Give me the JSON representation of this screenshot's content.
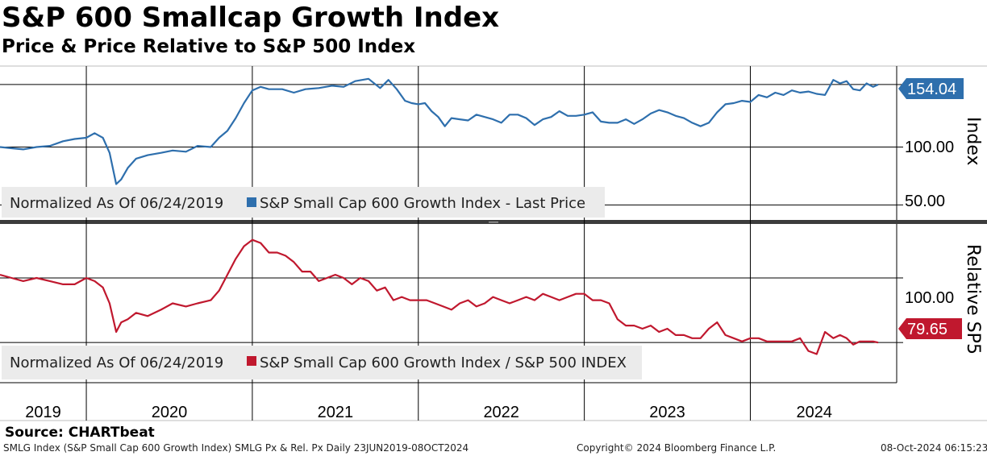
{
  "title": "S&P 600 Smallcap Growth Index",
  "subtitle": "Price & Price Relative to S&P 500 Index",
  "source": "Source: CHARTbeat",
  "footer": {
    "left": "SMLG Index (S&P Small Cap 600 Growth Index) SMLG Px & Rel. Px  Daily 23JUN2019-08OCT2024",
    "center": "Copyright© 2024 Bloomberg Finance L.P.",
    "right": "08-Oct-2024 06:15:23"
  },
  "colors": {
    "price": "#2e6fad",
    "relative": "#c0182e",
    "legend_bg": "#ebebeb",
    "divider": "#3c3c3c"
  },
  "chart_data": [
    {
      "type": "line",
      "ylabel": "Index",
      "yticks": [
        "100.00",
        "50.00"
      ],
      "last_value_label": "154.04",
      "legend": {
        "prefix": "Normalized As Of 06/24/2019",
        "series_name": "S&P Small Cap 600 Growth Index - Last Price"
      },
      "ylim": [
        37,
        170
      ],
      "series": [
        {
          "name": "S&P Small Cap 600 Growth Index - Last Price",
          "x": [
            2019.48,
            2019.55,
            2019.62,
            2019.7,
            2019.78,
            2019.86,
            2019.93,
            2020.0,
            2020.05,
            2020.1,
            2020.14,
            2020.18,
            2020.21,
            2020.25,
            2020.3,
            2020.37,
            2020.45,
            2020.52,
            2020.6,
            2020.67,
            2020.75,
            2020.8,
            2020.85,
            2020.9,
            2020.95,
            2021.0,
            2021.05,
            2021.1,
            2021.18,
            2021.25,
            2021.32,
            2021.4,
            2021.48,
            2021.55,
            2021.62,
            2021.7,
            2021.77,
            2021.82,
            2021.87,
            2021.92,
            2021.96,
            2022.0,
            2022.04,
            2022.08,
            2022.12,
            2022.16,
            2022.2,
            2022.25,
            2022.3,
            2022.35,
            2022.4,
            2022.45,
            2022.5,
            2022.55,
            2022.6,
            2022.65,
            2022.7,
            2022.75,
            2022.8,
            2022.85,
            2022.9,
            2022.95,
            2023.0,
            2023.05,
            2023.1,
            2023.15,
            2023.2,
            2023.25,
            2023.3,
            2023.35,
            2023.4,
            2023.45,
            2023.5,
            2023.55,
            2023.6,
            2023.65,
            2023.7,
            2023.75,
            2023.8,
            2023.85,
            2023.9,
            2023.95,
            2024.0,
            2024.05,
            2024.1,
            2024.15,
            2024.2,
            2024.25,
            2024.3,
            2024.35,
            2024.4,
            2024.45,
            2024.5,
            2024.54,
            2024.58,
            2024.62,
            2024.66,
            2024.7,
            2024.74,
            2024.77
          ],
          "values": [
            100,
            99,
            98,
            100,
            101,
            105,
            107,
            108,
            112,
            108,
            95,
            68,
            72,
            82,
            90,
            93,
            95,
            97,
            96,
            101,
            100,
            108,
            114,
            125,
            138,
            149,
            152,
            150,
            150,
            147,
            150,
            151,
            153,
            152,
            157,
            159,
            151,
            158,
            150,
            140,
            138,
            137,
            138,
            131,
            126,
            118,
            125,
            124,
            123,
            128,
            126,
            124,
            121,
            128,
            128,
            125,
            119,
            124,
            126,
            131,
            127,
            127,
            128,
            130,
            122,
            121,
            121,
            124,
            120,
            124,
            129,
            132,
            130,
            127,
            125,
            121,
            118,
            121,
            130,
            137,
            138,
            140,
            139,
            145,
            143,
            147,
            145,
            149,
            147,
            148,
            146,
            145,
            158,
            155,
            157,
            150,
            149,
            155,
            152,
            154
          ]
        }
      ]
    },
    {
      "type": "line",
      "ylabel": "Relative SP5",
      "yticks": [
        "100.00"
      ],
      "last_value_label": "79.65",
      "legend": {
        "prefix": "Normalized As Of 06/24/2019",
        "series_name": "S&P Small Cap 600 Growth Index / S&P 500 INDEX"
      },
      "ylim": [
        67,
        117
      ],
      "series": [
        {
          "name": "S&P Small Cap 600 Growth Index / S&P 500 INDEX",
          "x": [
            2019.48,
            2019.55,
            2019.62,
            2019.7,
            2019.78,
            2019.86,
            2019.93,
            2020.0,
            2020.05,
            2020.1,
            2020.14,
            2020.18,
            2020.21,
            2020.25,
            2020.3,
            2020.37,
            2020.45,
            2020.52,
            2020.6,
            2020.67,
            2020.75,
            2020.8,
            2020.85,
            2020.9,
            2020.95,
            2021.0,
            2021.05,
            2021.1,
            2021.15,
            2021.2,
            2021.25,
            2021.3,
            2021.35,
            2021.4,
            2021.45,
            2021.5,
            2021.55,
            2021.6,
            2021.65,
            2021.7,
            2021.75,
            2021.8,
            2021.85,
            2021.9,
            2021.95,
            2022.0,
            2022.05,
            2022.1,
            2022.15,
            2022.2,
            2022.25,
            2022.3,
            2022.35,
            2022.4,
            2022.45,
            2022.5,
            2022.55,
            2022.6,
            2022.65,
            2022.7,
            2022.75,
            2022.8,
            2022.85,
            2022.9,
            2022.95,
            2023.0,
            2023.05,
            2023.1,
            2023.15,
            2023.2,
            2023.25,
            2023.3,
            2023.35,
            2023.4,
            2023.45,
            2023.5,
            2023.55,
            2023.6,
            2023.65,
            2023.7,
            2023.75,
            2023.8,
            2023.85,
            2023.9,
            2023.95,
            2024.0,
            2024.05,
            2024.1,
            2024.15,
            2024.2,
            2024.25,
            2024.3,
            2024.35,
            2024.4,
            2024.45,
            2024.5,
            2024.54,
            2024.58,
            2024.62,
            2024.66,
            2024.7,
            2024.74,
            2024.77
          ],
          "values": [
            101,
            100,
            99,
            100,
            99,
            98,
            98,
            100,
            99,
            97,
            92,
            83,
            86,
            87,
            89,
            88,
            90,
            92,
            91,
            92,
            93,
            96,
            101,
            106,
            110,
            112,
            111,
            108,
            108,
            107,
            105,
            102,
            102,
            99,
            100,
            101,
            100,
            98,
            100,
            99,
            96,
            97,
            93,
            94,
            93,
            93,
            93,
            92,
            91,
            90,
            92,
            93,
            91,
            92,
            94,
            93,
            92,
            93,
            94,
            93,
            95,
            94,
            93,
            94,
            95,
            95,
            93,
            93,
            92,
            87,
            85,
            85,
            84,
            85,
            83,
            84,
            82,
            82,
            81,
            81,
            84,
            86,
            82,
            81,
            80,
            81,
            81,
            80,
            80,
            80,
            80,
            81,
            77,
            76,
            83,
            81,
            82,
            81,
            79,
            80,
            80,
            80,
            79.65
          ]
        }
      ]
    }
  ],
  "x_axis": {
    "years": [
      "2019",
      "2020",
      "2021",
      "2022",
      "2023",
      "2024"
    ],
    "range": [
      2019.48,
      2024.77
    ]
  }
}
